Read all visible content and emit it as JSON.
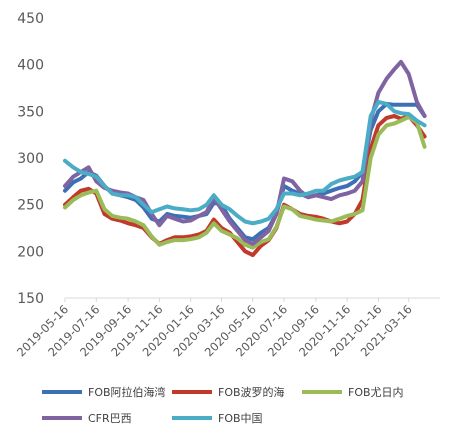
{
  "chart_data": {
    "type": "line",
    "title": "",
    "xlabel": "",
    "ylabel": "",
    "ylim": [
      150,
      450
    ],
    "yticks": [
      150,
      200,
      250,
      300,
      350,
      400,
      450
    ],
    "xlim": [
      "2019-05-16",
      "2021-05-16"
    ],
    "xticks": [
      "2019-05-16",
      "2019-07-16",
      "2019-09-16",
      "2019-11-16",
      "2020-01-16",
      "2020-03-16",
      "2020-05-16",
      "2020-07-16",
      "2020-09-16",
      "2020-11-16",
      "2021-01-16",
      "2021-03-16"
    ],
    "grid": false,
    "legend_position": "bottom",
    "series": [
      {
        "name": "FOB阿拉伯海湾",
        "color": "#3C6FB4",
        "points": [
          [
            "2019-05-16",
            265
          ],
          [
            "2019-06-01",
            274
          ],
          [
            "2019-06-16",
            278
          ],
          [
            "2019-07-01",
            285
          ],
          [
            "2019-07-16",
            281
          ],
          [
            "2019-08-01",
            270
          ],
          [
            "2019-08-16",
            262
          ],
          [
            "2019-09-01",
            260
          ],
          [
            "2019-09-16",
            258
          ],
          [
            "2019-10-01",
            255
          ],
          [
            "2019-10-16",
            247
          ],
          [
            "2019-11-01",
            235
          ],
          [
            "2019-11-16",
            232
          ],
          [
            "2019-12-01",
            240
          ],
          [
            "2019-12-16",
            238
          ],
          [
            "2020-01-01",
            237
          ],
          [
            "2020-01-16",
            236
          ],
          [
            "2020-02-01",
            238
          ],
          [
            "2020-02-16",
            240
          ],
          [
            "2020-03-01",
            252
          ],
          [
            "2020-03-16",
            250
          ],
          [
            "2020-04-01",
            235
          ],
          [
            "2020-04-16",
            225
          ],
          [
            "2020-05-01",
            215
          ],
          [
            "2020-05-16",
            213
          ],
          [
            "2020-06-01",
            220
          ],
          [
            "2020-06-16",
            225
          ],
          [
            "2020-07-01",
            240
          ],
          [
            "2020-07-16",
            270
          ],
          [
            "2020-08-01",
            265
          ],
          [
            "2020-08-16",
            262
          ],
          [
            "2020-09-01",
            258
          ],
          [
            "2020-09-16",
            260
          ],
          [
            "2020-10-01",
            262
          ],
          [
            "2020-10-16",
            265
          ],
          [
            "2020-11-01",
            268
          ],
          [
            "2020-11-16",
            270
          ],
          [
            "2020-12-01",
            275
          ],
          [
            "2020-12-16",
            285
          ],
          [
            "2021-01-01",
            330
          ],
          [
            "2021-01-16",
            350
          ],
          [
            "2021-02-01",
            358
          ],
          [
            "2021-02-16",
            357
          ],
          [
            "2021-03-01",
            357
          ],
          [
            "2021-03-16",
            357
          ],
          [
            "2021-04-01",
            357
          ],
          [
            "2021-04-16",
            345
          ]
        ]
      },
      {
        "name": "FOB波罗的海",
        "color": "#C0392B",
        "points": [
          [
            "2019-05-16",
            250
          ],
          [
            "2019-06-01",
            258
          ],
          [
            "2019-06-16",
            265
          ],
          [
            "2019-07-01",
            267
          ],
          [
            "2019-07-16",
            262
          ],
          [
            "2019-08-01",
            240
          ],
          [
            "2019-08-16",
            235
          ],
          [
            "2019-09-01",
            233
          ],
          [
            "2019-09-16",
            230
          ],
          [
            "2019-10-01",
            228
          ],
          [
            "2019-10-16",
            225
          ],
          [
            "2019-11-01",
            215
          ],
          [
            "2019-11-16",
            208
          ],
          [
            "2019-12-01",
            212
          ],
          [
            "2019-12-16",
            215
          ],
          [
            "2020-01-01",
            215
          ],
          [
            "2020-01-16",
            216
          ],
          [
            "2020-02-01",
            218
          ],
          [
            "2020-02-16",
            222
          ],
          [
            "2020-03-01",
            234
          ],
          [
            "2020-03-16",
            225
          ],
          [
            "2020-04-01",
            220
          ],
          [
            "2020-04-16",
            210
          ],
          [
            "2020-05-01",
            200
          ],
          [
            "2020-05-16",
            196
          ],
          [
            "2020-06-01",
            206
          ],
          [
            "2020-06-16",
            212
          ],
          [
            "2020-07-01",
            225
          ],
          [
            "2020-07-16",
            250
          ],
          [
            "2020-08-01",
            245
          ],
          [
            "2020-08-16",
            240
          ],
          [
            "2020-09-01",
            238
          ],
          [
            "2020-09-16",
            237
          ],
          [
            "2020-10-01",
            235
          ],
          [
            "2020-10-16",
            232
          ],
          [
            "2020-11-01",
            230
          ],
          [
            "2020-11-16",
            232
          ],
          [
            "2020-12-01",
            240
          ],
          [
            "2020-12-16",
            255
          ],
          [
            "2021-01-01",
            310
          ],
          [
            "2021-01-16",
            335
          ],
          [
            "2021-02-01",
            343
          ],
          [
            "2021-02-16",
            345
          ],
          [
            "2021-03-01",
            342
          ],
          [
            "2021-03-16",
            345
          ],
          [
            "2021-04-01",
            335
          ],
          [
            "2021-04-16",
            323
          ]
        ]
      },
      {
        "name": "FOB尤日内",
        "color": "#9BBB59",
        "points": [
          [
            "2019-05-16",
            247
          ],
          [
            "2019-06-01",
            255
          ],
          [
            "2019-06-16",
            260
          ],
          [
            "2019-07-01",
            263
          ],
          [
            "2019-07-16",
            265
          ],
          [
            "2019-08-01",
            245
          ],
          [
            "2019-08-16",
            238
          ],
          [
            "2019-09-01",
            236
          ],
          [
            "2019-09-16",
            235
          ],
          [
            "2019-10-01",
            232
          ],
          [
            "2019-10-16",
            228
          ],
          [
            "2019-11-01",
            216
          ],
          [
            "2019-11-16",
            207
          ],
          [
            "2019-12-01",
            210
          ],
          [
            "2019-12-16",
            212
          ],
          [
            "2020-01-01",
            212
          ],
          [
            "2020-01-16",
            213
          ],
          [
            "2020-02-01",
            215
          ],
          [
            "2020-02-16",
            220
          ],
          [
            "2020-03-01",
            230
          ],
          [
            "2020-03-16",
            222
          ],
          [
            "2020-04-01",
            218
          ],
          [
            "2020-04-16",
            214
          ],
          [
            "2020-05-01",
            207
          ],
          [
            "2020-05-16",
            204
          ],
          [
            "2020-06-01",
            210
          ],
          [
            "2020-06-16",
            213
          ],
          [
            "2020-07-01",
            226
          ],
          [
            "2020-07-16",
            248
          ],
          [
            "2020-08-01",
            245
          ],
          [
            "2020-08-16",
            238
          ],
          [
            "2020-09-01",
            236
          ],
          [
            "2020-09-16",
            234
          ],
          [
            "2020-10-01",
            233
          ],
          [
            "2020-10-16",
            232
          ],
          [
            "2020-11-01",
            235
          ],
          [
            "2020-11-16",
            238
          ],
          [
            "2020-12-01",
            240
          ],
          [
            "2020-12-16",
            244
          ],
          [
            "2021-01-01",
            300
          ],
          [
            "2021-01-16",
            325
          ],
          [
            "2021-02-01",
            335
          ],
          [
            "2021-02-16",
            337
          ],
          [
            "2021-03-01",
            340
          ],
          [
            "2021-03-16",
            344
          ],
          [
            "2021-04-01",
            338
          ],
          [
            "2021-04-16",
            312
          ]
        ]
      },
      {
        "name": "CFR巴西",
        "color": "#8064A2",
        "points": [
          [
            "2019-05-16",
            270
          ],
          [
            "2019-06-01",
            280
          ],
          [
            "2019-06-16",
            285
          ],
          [
            "2019-07-01",
            290
          ],
          [
            "2019-07-16",
            275
          ],
          [
            "2019-08-01",
            268
          ],
          [
            "2019-08-16",
            265
          ],
          [
            "2019-09-01",
            263
          ],
          [
            "2019-09-16",
            262
          ],
          [
            "2019-10-01",
            258
          ],
          [
            "2019-10-16",
            255
          ],
          [
            "2019-11-01",
            240
          ],
          [
            "2019-11-16",
            228
          ],
          [
            "2019-12-01",
            238
          ],
          [
            "2019-12-16",
            235
          ],
          [
            "2020-01-01",
            232
          ],
          [
            "2020-01-16",
            233
          ],
          [
            "2020-02-01",
            238
          ],
          [
            "2020-02-16",
            242
          ],
          [
            "2020-03-01",
            258
          ],
          [
            "2020-03-16",
            245
          ],
          [
            "2020-04-01",
            232
          ],
          [
            "2020-04-16",
            222
          ],
          [
            "2020-05-01",
            212
          ],
          [
            "2020-05-16",
            208
          ],
          [
            "2020-06-01",
            215
          ],
          [
            "2020-06-16",
            222
          ],
          [
            "2020-07-01",
            240
          ],
          [
            "2020-07-16",
            278
          ],
          [
            "2020-08-01",
            275
          ],
          [
            "2020-08-16",
            265
          ],
          [
            "2020-09-01",
            258
          ],
          [
            "2020-09-16",
            260
          ],
          [
            "2020-10-01",
            258
          ],
          [
            "2020-10-16",
            256
          ],
          [
            "2020-11-01",
            260
          ],
          [
            "2020-11-16",
            262
          ],
          [
            "2020-12-01",
            265
          ],
          [
            "2020-12-16",
            275
          ],
          [
            "2021-01-01",
            340
          ],
          [
            "2021-01-16",
            370
          ],
          [
            "2021-02-01",
            385
          ],
          [
            "2021-02-16",
            395
          ],
          [
            "2021-03-01",
            403
          ],
          [
            "2021-03-16",
            390
          ],
          [
            "2021-04-01",
            360
          ],
          [
            "2021-04-16",
            345
          ]
        ]
      },
      {
        "name": "FOB中国",
        "color": "#4BACC6",
        "points": [
          [
            "2019-05-16",
            297
          ],
          [
            "2019-06-01",
            290
          ],
          [
            "2019-06-16",
            285
          ],
          [
            "2019-07-01",
            283
          ],
          [
            "2019-07-16",
            280
          ],
          [
            "2019-08-01",
            270
          ],
          [
            "2019-08-16",
            262
          ],
          [
            "2019-09-01",
            260
          ],
          [
            "2019-09-16",
            260
          ],
          [
            "2019-10-01",
            258
          ],
          [
            "2019-10-16",
            250
          ],
          [
            "2019-11-01",
            242
          ],
          [
            "2019-11-16",
            245
          ],
          [
            "2019-12-01",
            248
          ],
          [
            "2019-12-16",
            246
          ],
          [
            "2020-01-01",
            245
          ],
          [
            "2020-01-16",
            244
          ],
          [
            "2020-02-01",
            245
          ],
          [
            "2020-02-16",
            250
          ],
          [
            "2020-03-01",
            260
          ],
          [
            "2020-03-16",
            250
          ],
          [
            "2020-04-01",
            245
          ],
          [
            "2020-04-16",
            238
          ],
          [
            "2020-05-01",
            232
          ],
          [
            "2020-05-16",
            230
          ],
          [
            "2020-06-01",
            232
          ],
          [
            "2020-06-16",
            235
          ],
          [
            "2020-07-01",
            245
          ],
          [
            "2020-07-16",
            262
          ],
          [
            "2020-08-01",
            262
          ],
          [
            "2020-08-16",
            260
          ],
          [
            "2020-09-01",
            262
          ],
          [
            "2020-09-16",
            265
          ],
          [
            "2020-10-01",
            265
          ],
          [
            "2020-10-16",
            272
          ],
          [
            "2020-11-01",
            276
          ],
          [
            "2020-11-16",
            278
          ],
          [
            "2020-12-01",
            280
          ],
          [
            "2020-12-16",
            285
          ],
          [
            "2021-01-01",
            345
          ],
          [
            "2021-01-16",
            360
          ],
          [
            "2021-02-01",
            358
          ],
          [
            "2021-02-16",
            350
          ],
          [
            "2021-03-01",
            348
          ],
          [
            "2021-03-16",
            347
          ],
          [
            "2021-04-01",
            340
          ],
          [
            "2021-04-16",
            335
          ]
        ]
      }
    ],
    "legend_rows": [
      [
        0,
        1,
        2
      ],
      [
        3,
        4
      ]
    ]
  }
}
